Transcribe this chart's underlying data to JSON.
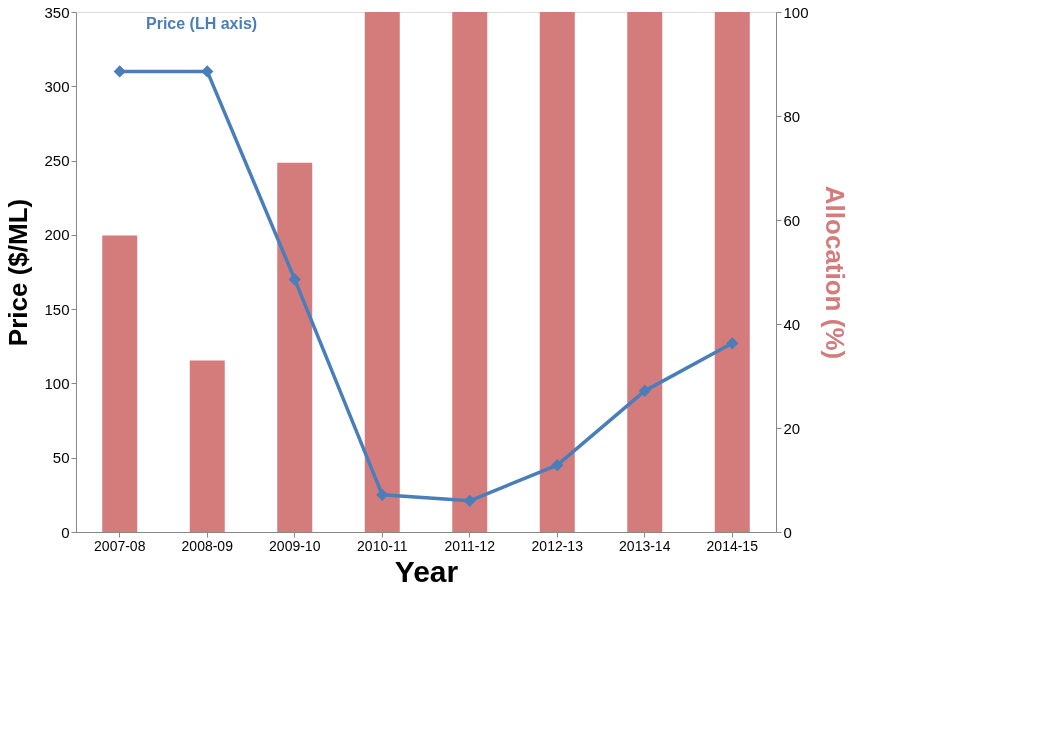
{
  "chart_data": {
    "type": "bar",
    "xlabel": "Year",
    "ylabel": "Price ($/ML)",
    "y2label": "Allocation (%)",
    "categories": [
      "2007-08",
      "2008-09",
      "2009-10",
      "2010-11",
      "2011-12",
      "2012-13",
      "2013-14",
      "2014-15"
    ],
    "series": [
      {
        "axis": "y2",
        "color": "#d47b7b",
        "values": [
          57,
          33,
          71,
          100,
          100,
          100,
          100,
          100
        ]
      },
      {
        "type": "line",
        "axis": "y",
        "name": "Price (LH axis)",
        "color": "#4a7ebb",
        "values": [
          310,
          310,
          170,
          25,
          21,
          45,
          95,
          127
        ]
      }
    ],
    "ylim": [
      0,
      350
    ],
    "yticks": [
      0,
      50,
      100,
      150,
      200,
      250,
      300,
      350
    ],
    "y2lim": [
      0,
      100
    ],
    "y2ticks": [
      0,
      20,
      40,
      60,
      80,
      100
    ],
    "marker": "diamond",
    "line_style": "solid",
    "grid": false
  }
}
